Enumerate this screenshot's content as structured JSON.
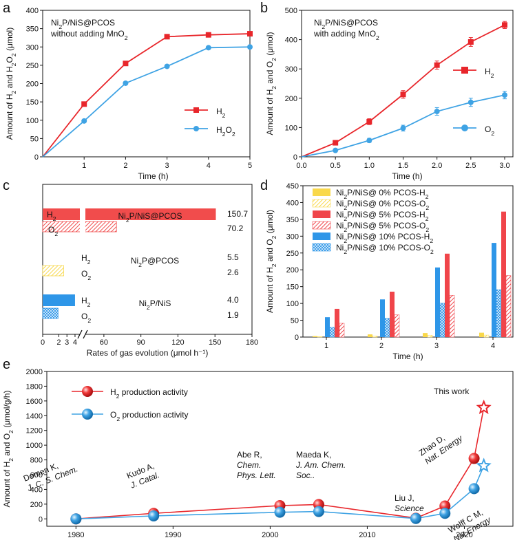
{
  "chart_data": [
    {
      "panel": "a",
      "type": "line",
      "annotation": [
        "Ni2P/NiS@PCOS",
        "without adding MnO2"
      ],
      "xlabel": "Time (h)",
      "ylabel": "Amount of H2 and H2O2 (μmol)",
      "xlim": [
        0,
        5
      ],
      "ylim": [
        0,
        400
      ],
      "xticks": [
        1,
        2,
        3,
        4,
        5
      ],
      "yticks": [
        0,
        50,
        100,
        150,
        200,
        250,
        300,
        350,
        400
      ],
      "series": [
        {
          "name": "H2",
          "color": "#e8262b",
          "marker": "square",
          "x": [
            0,
            1,
            2,
            3,
            4,
            5
          ],
          "y": [
            0,
            144,
            255,
            328,
            333,
            336
          ]
        },
        {
          "name": "H2O2",
          "color": "#3fa3e4",
          "marker": "circle",
          "x": [
            0,
            1,
            2,
            3,
            4,
            5
          ],
          "y": [
            0,
            98,
            201,
            247,
            298,
            300
          ]
        }
      ]
    },
    {
      "panel": "b",
      "type": "line",
      "annotation": [
        "Ni2P/NiS@PCOS",
        "with adding MnO2"
      ],
      "xlabel": "Time (h)",
      "ylabel": "Amount of H2 and O2 (μmol)",
      "xlim": [
        0,
        3
      ],
      "ylim": [
        0,
        500
      ],
      "xticks": [
        0.0,
        0.5,
        1.0,
        1.5,
        2.0,
        2.5,
        3.0
      ],
      "yticks": [
        0,
        100,
        200,
        300,
        400,
        500
      ],
      "series": [
        {
          "name": "H2",
          "color": "#e8262b",
          "marker": "square",
          "x": [
            0,
            0.5,
            1.0,
            1.5,
            2.0,
            2.5,
            3.0
          ],
          "y": [
            0,
            48,
            120,
            213,
            313,
            392,
            450
          ],
          "err": [
            0,
            8,
            10,
            13,
            14,
            15,
            12
          ]
        },
        {
          "name": "O2",
          "color": "#3fa3e4",
          "marker": "circle",
          "x": [
            0,
            0.5,
            1.0,
            1.5,
            2.0,
            2.5,
            3.0
          ],
          "y": [
            0,
            22,
            56,
            98,
            155,
            186,
            211
          ],
          "err": [
            0,
            4,
            7,
            10,
            13,
            14,
            13
          ]
        }
      ]
    },
    {
      "panel": "c",
      "type": "bar",
      "orientation": "horizontal",
      "xlabel": "Rates of gas evolution (μmol h⁻¹)",
      "xticks": [
        0,
        2,
        3,
        4,
        60,
        90,
        120,
        150,
        180
      ],
      "xtick_labels": [
        "0",
        "2",
        "3",
        "4",
        "60",
        "90",
        "120",
        "150",
        "180"
      ],
      "groups": [
        {
          "name": "Ni2P/NiS@PCOS",
          "color": "#f14c4c",
          "H2": 150.7,
          "O2": 70.2,
          "H2_label": "150.7",
          "O2_label": "70.2"
        },
        {
          "name": "Ni2P@PCOS",
          "color": "#f7d84c",
          "H2": 5.5,
          "O2": 2.6,
          "H2_label": "5.5",
          "O2_label": "2.6"
        },
        {
          "name": "Ni2P/NiS",
          "color": "#2e96e8",
          "H2": 4.0,
          "O2": 1.9,
          "H2_label": "4.0",
          "O2_label": "1.9"
        }
      ],
      "bar_labels": [
        "H2",
        "O2"
      ]
    },
    {
      "panel": "d",
      "type": "bar",
      "xlabel": "Time (h)",
      "ylabel": "Amount of H2 and O2 (μmol)",
      "ylim": [
        0,
        450
      ],
      "yticks": [
        0,
        50,
        100,
        150,
        200,
        250,
        300,
        350,
        400,
        450
      ],
      "categories": [
        "1",
        "2",
        "3",
        "4"
      ],
      "series": [
        {
          "name": "Ni2P/NiS@ 0% PCOS-H2",
          "color": "#f9d84a",
          "pattern": false,
          "values": [
            3,
            8,
            12,
            13
          ]
        },
        {
          "name": "Ni2P/NiS@ 0% PCOS-O2",
          "color": "#f9d84a",
          "pattern": true,
          "values": [
            1,
            3,
            5,
            6
          ]
        },
        {
          "name": "Ni2P/NiS@ 5% PCOS-H2",
          "color": "#f0454a",
          "pattern": false,
          "values": [
            84,
            135,
            248,
            373
          ]
        },
        {
          "name": "Ni2P/NiS@ 5% PCOS-O2",
          "color": "#f0454a",
          "pattern": true,
          "values": [
            41,
            66,
            124,
            183
          ]
        },
        {
          "name": "Ni2P/NiS@ 10% PCOS-H2",
          "color": "#2e96e8",
          "pattern": false,
          "values": [
            59,
            112,
            207,
            280
          ]
        },
        {
          "name": "Ni2P/NiS@ 10% PCOS-O2",
          "color": "#2e96e8",
          "pattern": true,
          "values": [
            29,
            56,
            101,
            141
          ]
        }
      ]
    },
    {
      "panel": "e",
      "type": "line",
      "xlabel": "",
      "ylabel": "Amount of H2 and O2 (μmol/g/h)",
      "xlim": [
        1977,
        2025
      ],
      "ylim": [
        -100,
        2000
      ],
      "xticks": [
        1980,
        1990,
        2000,
        2010,
        2020
      ],
      "yticks": [
        0,
        200,
        400,
        600,
        800,
        1000,
        1200,
        1400,
        1600,
        1800,
        2000
      ],
      "series": [
        {
          "name": "H2 production activity",
          "color": "#e8262b",
          "x": [
            1980,
            1988,
            2001,
            2005,
            2015,
            2018,
            2021,
            2022
          ],
          "y": [
            0,
            75,
            180,
            195,
            10,
            175,
            820,
            1510
          ]
        },
        {
          "name": "O2 production activity",
          "color": "#3fa3e4",
          "x": [
            1980,
            1988,
            2001,
            2005,
            2015,
            2018,
            2021,
            2022
          ],
          "y": [
            0,
            40,
            90,
            100,
            5,
            75,
            410,
            720
          ]
        }
      ],
      "annotations": [
        {
          "lines": [
            "Domen K,",
            "J. C. S. Chem."
          ]
        },
        {
          "lines": [
            "Kudo A,",
            "J. Catal."
          ]
        },
        {
          "lines": [
            "Abe R,",
            "Chem.",
            "Phys. Lett."
          ]
        },
        {
          "lines": [
            "Maeda K,",
            "J. Am. Chem.",
            "Soc.."
          ]
        },
        {
          "lines": [
            "Liu J,",
            "Science"
          ]
        },
        {
          "lines": [
            "Zhao D,",
            "Nat. Energy"
          ]
        },
        {
          "lines": [
            "Wolff C M,",
            "Nat.Energy"
          ]
        },
        {
          "lines": [
            "This work"
          ]
        }
      ]
    }
  ]
}
